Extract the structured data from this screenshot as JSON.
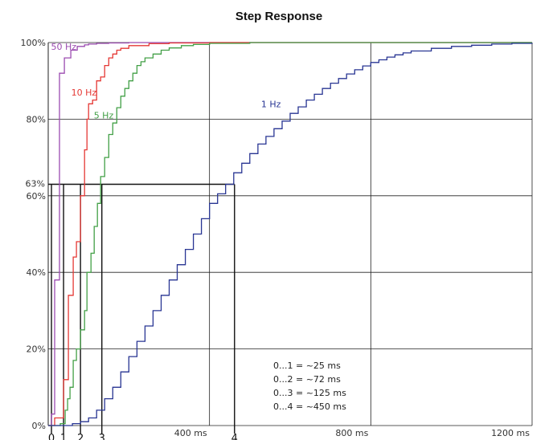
{
  "chart_data": {
    "type": "line",
    "title": "Step Response",
    "xlabel": "",
    "ylabel": "",
    "xlim": [
      0,
      1200
    ],
    "ylim": [
      0,
      100
    ],
    "grid": true,
    "y_ticks": [
      {
        "value": 0,
        "label": "0%"
      },
      {
        "value": 20,
        "label": "20%"
      },
      {
        "value": 40,
        "label": "40%"
      },
      {
        "value": 60,
        "label": "60%"
      },
      {
        "value": 80,
        "label": "80%"
      },
      {
        "value": 100,
        "label": "100%"
      }
    ],
    "x_ticks": [
      {
        "value": 400,
        "label": "400 ms"
      },
      {
        "value": 800,
        "label": "800 ms"
      },
      {
        "value": 1200,
        "label": "1200 ms"
      }
    ],
    "threshold": {
      "value": 63,
      "label": "63%"
    },
    "markers": [
      {
        "label": "0",
        "x": 8
      },
      {
        "label": "1",
        "x": 38
      },
      {
        "label": "2",
        "x": 80
      },
      {
        "label": "3",
        "x": 133
      },
      {
        "label": "4",
        "x": 462
      }
    ],
    "series": [
      {
        "name": "50 Hz",
        "color": "#9b4bb0",
        "label_at": [
          7,
          99
        ],
        "x": [
          0,
          8,
          12,
          16,
          20,
          28,
          32,
          40,
          48,
          56,
          64,
          72,
          80,
          90,
          100,
          120,
          150,
          200,
          300,
          1200
        ],
        "y": [
          0,
          3,
          3,
          38,
          38,
          92,
          92,
          96,
          96,
          98,
          98,
          99,
          99,
          99.4,
          99.6,
          99.8,
          99.9,
          100,
          100,
          100
        ]
      },
      {
        "name": "10 Hz",
        "color": "#e53935",
        "label_at": [
          57,
          87
        ],
        "x": [
          0,
          16,
          30,
          38,
          44,
          50,
          56,
          62,
          70,
          80,
          84,
          90,
          96,
          100,
          110,
          120,
          130,
          140,
          150,
          160,
          170,
          180,
          200,
          250,
          300,
          400,
          600,
          800,
          1200
        ],
        "y": [
          0,
          2,
          2,
          12,
          12,
          34,
          34,
          44,
          48,
          60,
          60,
          72,
          80,
          84,
          85,
          90,
          91,
          94,
          96,
          97,
          98,
          98.5,
          99.2,
          99.7,
          99.9,
          100,
          100,
          100,
          100
        ]
      },
      {
        "name": "5 Hz",
        "color": "#43a047",
        "label_at": [
          113,
          81
        ],
        "x": [
          0,
          30,
          42,
          48,
          54,
          62,
          70,
          80,
          90,
          96,
          106,
          114,
          122,
          130,
          140,
          150,
          160,
          170,
          180,
          190,
          200,
          210,
          220,
          230,
          240,
          260,
          280,
          300,
          330,
          360,
          400,
          500,
          600,
          800,
          1200
        ],
        "y": [
          0,
          0.5,
          4,
          7,
          10,
          17,
          20,
          25,
          30,
          40,
          45,
          52,
          58,
          65,
          70,
          76,
          79,
          83,
          86,
          88,
          90,
          92,
          94,
          95,
          96,
          97,
          98,
          98.6,
          99.2,
          99.5,
          99.8,
          100,
          100,
          100,
          100
        ]
      },
      {
        "name": "1 Hz",
        "color": "#283593",
        "label_at": [
          528,
          84
        ],
        "x": [
          0,
          40,
          60,
          80,
          100,
          120,
          140,
          160,
          180,
          200,
          220,
          240,
          260,
          280,
          300,
          320,
          340,
          360,
          380,
          400,
          420,
          440,
          460,
          480,
          500,
          520,
          540,
          560,
          580,
          600,
          620,
          640,
          660,
          680,
          700,
          720,
          740,
          760,
          780,
          800,
          820,
          840,
          860,
          880,
          900,
          950,
          1000,
          1050,
          1100,
          1150,
          1200
        ],
        "y": [
          0,
          0,
          0.5,
          1,
          2,
          4,
          7,
          10,
          14,
          18,
          22,
          26,
          30,
          34,
          38,
          42,
          46,
          50,
          54,
          58,
          60.5,
          63,
          66,
          68.5,
          71,
          73.5,
          75.5,
          77.5,
          79.5,
          81.5,
          83.2,
          85,
          86.5,
          88,
          89.4,
          90.6,
          91.8,
          92.9,
          93.9,
          94.8,
          95.5,
          96.2,
          96.8,
          97.3,
          97.8,
          98.5,
          99,
          99.3,
          99.6,
          99.8,
          99.9
        ]
      }
    ],
    "annotations": [
      "0...1 = ~25 ms",
      "0...2 = ~72 ms",
      "0...3 = ~125 ms",
      "0...4 = ~450 ms"
    ]
  }
}
